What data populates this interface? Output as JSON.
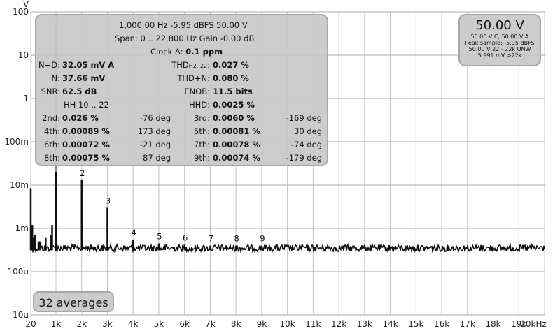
{
  "chart_data": {
    "type": "line",
    "yunit_label": "V",
    "xlim": [
      20,
      20000
    ],
    "ylim_log10": [
      -5,
      2
    ],
    "y_scale": "log",
    "grid": true,
    "x_ticks": [
      {
        "v": 20,
        "label": "20"
      },
      {
        "v": 1000,
        "label": "1k"
      },
      {
        "v": 2000,
        "label": "2k"
      },
      {
        "v": 3000,
        "label": "3k"
      },
      {
        "v": 4000,
        "label": "4k"
      },
      {
        "v": 5000,
        "label": "5k"
      },
      {
        "v": 6000,
        "label": "6k"
      },
      {
        "v": 7000,
        "label": "7k"
      },
      {
        "v": 8000,
        "label": "8k"
      },
      {
        "v": 9000,
        "label": "9k"
      },
      {
        "v": 10000,
        "label": "10k"
      },
      {
        "v": 11000,
        "label": "11k"
      },
      {
        "v": 12000,
        "label": "12k"
      },
      {
        "v": 13000,
        "label": "13k"
      },
      {
        "v": 14000,
        "label": "14k"
      },
      {
        "v": 15000,
        "label": "15k"
      },
      {
        "v": 16000,
        "label": "16k"
      },
      {
        "v": 17000,
        "label": "17k"
      },
      {
        "v": 18000,
        "label": "18k"
      },
      {
        "v": 19000,
        "label": "19k"
      },
      {
        "v": 20000,
        "label": "20kHz"
      }
    ],
    "y_ticks": [
      {
        "exp": 2,
        "label": "100"
      },
      {
        "exp": 1,
        "label": "10"
      },
      {
        "exp": 0,
        "label": "1"
      },
      {
        "exp": -1,
        "label": "100m"
      },
      {
        "exp": -2,
        "label": "10m"
      },
      {
        "exp": -3,
        "label": "1m"
      },
      {
        "exp": -4,
        "label": "100u"
      },
      {
        "exp": -5,
        "label": "10u"
      }
    ],
    "noise_floor_v": 0.00035,
    "peaks": [
      {
        "f": 20,
        "v": 0.0085
      },
      {
        "f": 40,
        "v": 0.0008
      },
      {
        "f": 60,
        "v": 0.0008
      },
      {
        "f": 80,
        "v": 0.0012
      },
      {
        "f": 120,
        "v": 0.0006
      },
      {
        "f": 180,
        "v": 0.0007
      },
      {
        "f": 200,
        "v": 0.0005
      },
      {
        "f": 320,
        "v": 0.0005
      },
      {
        "f": 380,
        "v": 0.0005
      },
      {
        "f": 600,
        "v": 0.0006
      },
      {
        "f": 800,
        "v": 0.0007
      },
      {
        "f": 850,
        "v": 0.0012
      },
      {
        "f": 1000,
        "v": 50.0
      },
      {
        "f": 2000,
        "v": 0.013
      },
      {
        "f": 3000,
        "v": 0.003
      },
      {
        "f": 4000,
        "v": 0.00055
      },
      {
        "f": 5000,
        "v": 0.00045
      },
      {
        "f": 6000,
        "v": 0.00042
      },
      {
        "f": 7000,
        "v": 0.0004
      },
      {
        "f": 8000,
        "v": 0.0004
      },
      {
        "f": 9000,
        "v": 0.0004
      }
    ],
    "harmonic_labels": [
      {
        "f": 1000,
        "v": 50.0,
        "label": "1"
      },
      {
        "f": 2000,
        "v": 0.013,
        "label": "2"
      },
      {
        "f": 3000,
        "v": 0.003,
        "label": "3"
      },
      {
        "f": 4000,
        "v": 0.00055,
        "label": "4"
      },
      {
        "f": 5000,
        "v": 0.00045,
        "label": "5"
      },
      {
        "f": 6000,
        "v": 0.00042,
        "label": "6"
      },
      {
        "f": 7000,
        "v": 0.0004,
        "label": "7"
      },
      {
        "f": 8000,
        "v": 0.0004,
        "label": "8"
      },
      {
        "f": 9000,
        "v": 0.0004,
        "label": "9"
      }
    ]
  },
  "info": {
    "line1": "1,000.00 Hz  -5.95 dBFS  50.00 V",
    "line2": "Span: 0 .. 22,800 Hz   Gain  -0.00 dB",
    "clock_label": "Clock Δ:",
    "clock_value": "0.1 ppm",
    "nd_label": "N+D:",
    "nd_value": "32.05 mV A",
    "thd_label": "THD",
    "thd_sub": "H2..22",
    "thd_value": "0.027 %",
    "n_label": "N:",
    "n_value": "37.66 mV",
    "thdn_label": "THD+N:",
    "thdn_value": "0.080 %",
    "snr_label": "SNR:",
    "snr_value": "62.5 dB",
    "enob_label": "ENOB:",
    "enob_value": "11.5 bits",
    "hh_label": "HH 10 .. 22",
    "hhd_label": "HHD:",
    "hhd_value": "0.0025 %",
    "harmonics": [
      {
        "label": "2nd:",
        "value": "0.026 %",
        "deg": "-76 deg",
        "label2": "3rd:",
        "value2": "0.0060 %",
        "deg2": "-169 deg"
      },
      {
        "label": "4th:",
        "value": "0.00089 %",
        "deg": "173 deg",
        "label2": "5th:",
        "value2": "0.00081 %",
        "deg2": "30 deg"
      },
      {
        "label": "6th:",
        "value": "0.00072 %",
        "deg": "-21 deg",
        "label2": "7th:",
        "value2": "0.00078 %",
        "deg2": "-74 deg"
      },
      {
        "label": "8th:",
        "value": "0.00075 %",
        "deg": "87 deg",
        "label2": "9th:",
        "value2": "0.00074 %",
        "deg2": "-179 deg"
      }
    ]
  },
  "voltage_box": {
    "big": "50.00 V",
    "lines": [
      "50.00 V C, 50.00 V A",
      "Peak sample: -5.95 dBFS",
      "50.00 V 22 - 22k UNW",
      "5.991 mV >22k"
    ]
  },
  "averages_label": "32 averages"
}
